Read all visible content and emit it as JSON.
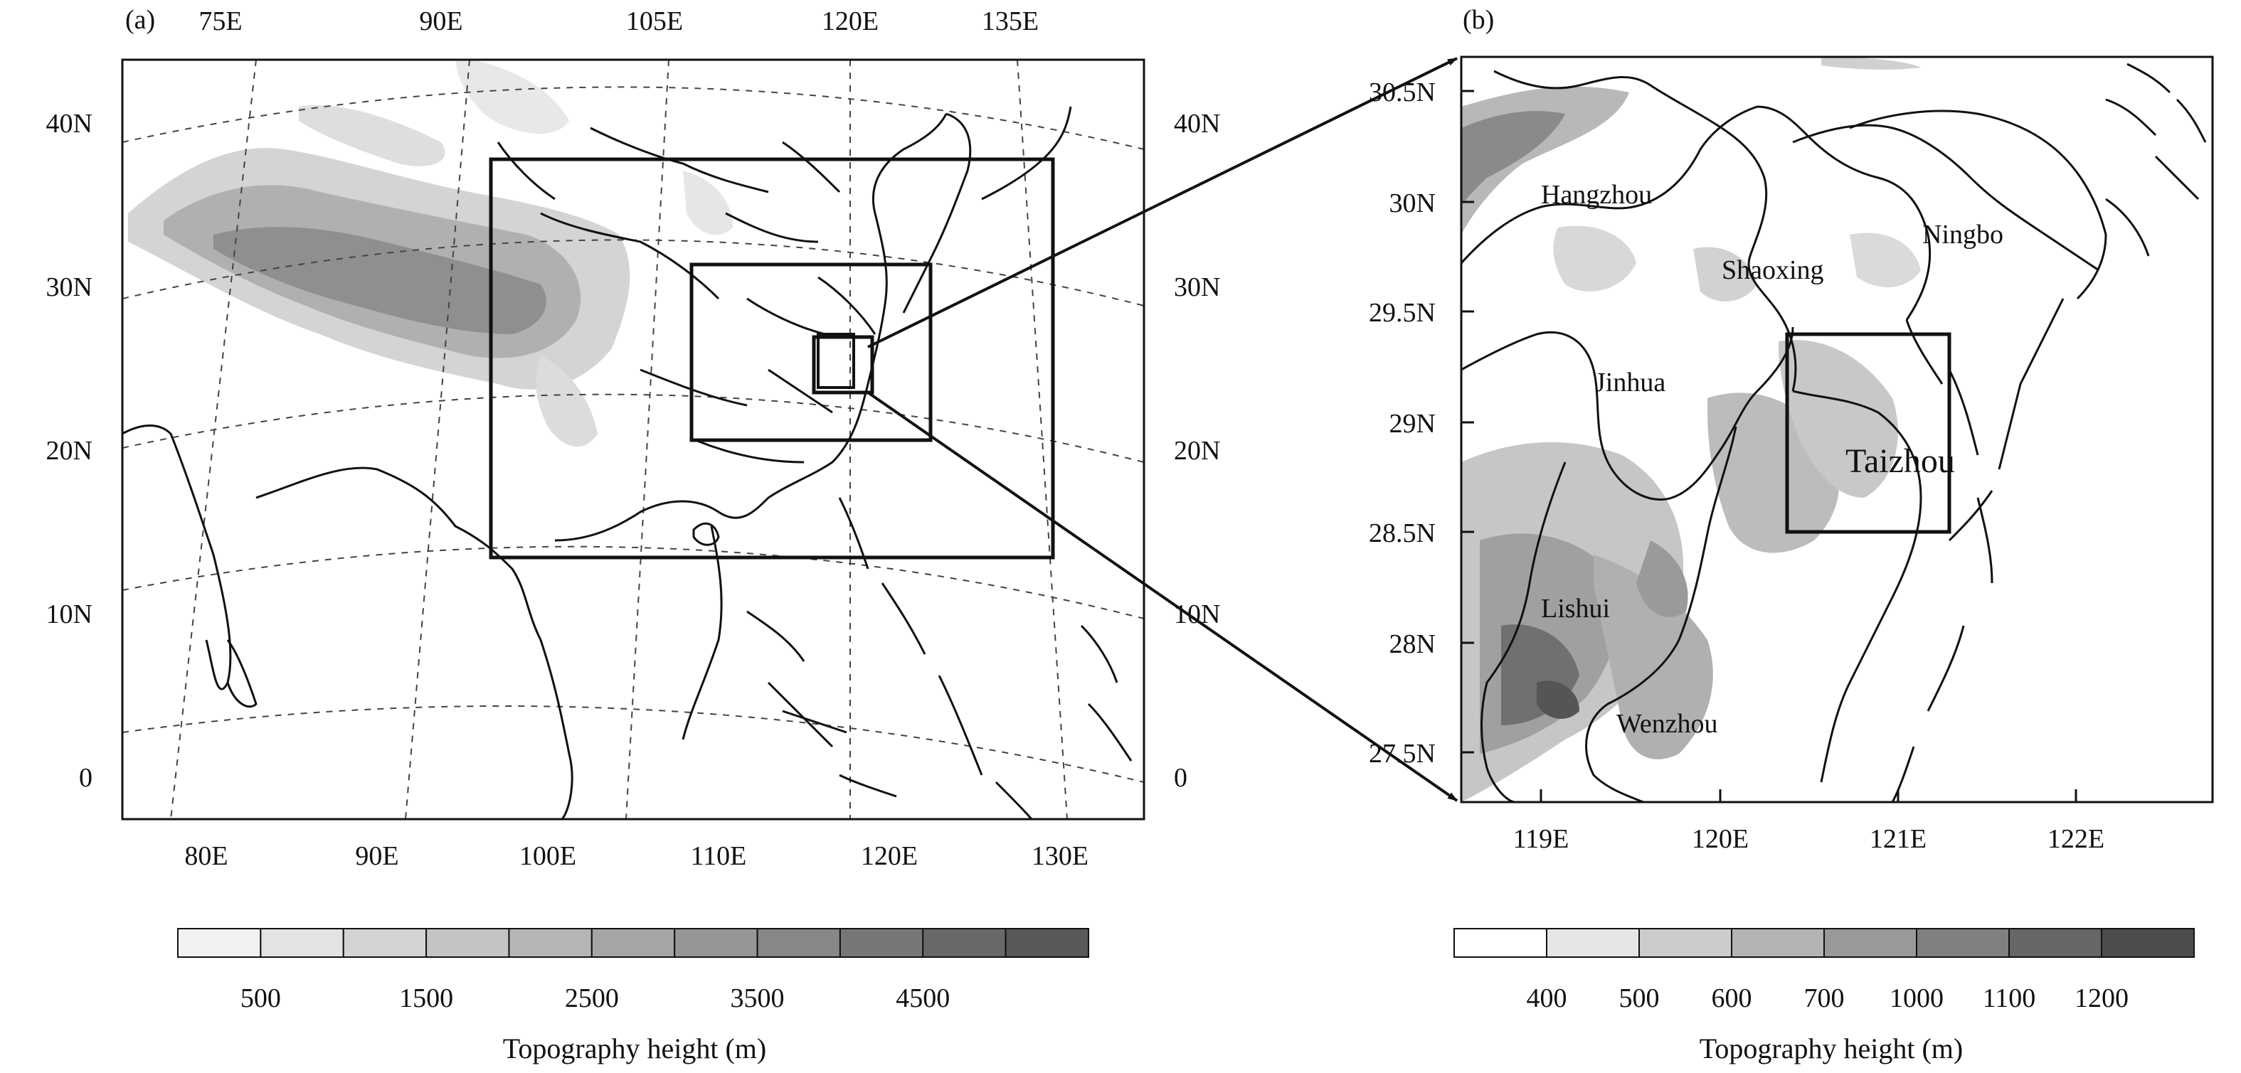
{
  "panel_a": {
    "label": "(a)",
    "top_lon_labels": [
      "75E",
      "90E",
      "105E",
      "120E",
      "135E"
    ],
    "bottom_lon_labels": [
      "80E",
      "90E",
      "100E",
      "110E",
      "120E",
      "130E"
    ],
    "left_lat_labels": [
      "40N",
      "30N",
      "20N",
      "10N",
      "0"
    ],
    "right_lat_labels": [
      "40N",
      "30N",
      "20N",
      "10N",
      "0"
    ],
    "colorbar": {
      "tick_labels": [
        "500",
        "1500",
        "2500",
        "3500",
        "4500"
      ],
      "title": "Topography height (m)",
      "colors": [
        "#f2f2f2",
        "#e3e3e3",
        "#d3d3d3",
        "#c4c4c4",
        "#b5b5b5",
        "#a5a5a5",
        "#969696",
        "#878787",
        "#777777",
        "#686868",
        "#595959"
      ]
    }
  },
  "panel_b": {
    "label": "(b)",
    "lat_labels": [
      "30.5N",
      "30N",
      "29.5N",
      "29N",
      "28.5N",
      "28N",
      "27.5N"
    ],
    "lon_labels": [
      "119E",
      "120E",
      "121E",
      "122E"
    ],
    "cities": [
      "Hangzhou",
      "Shaoxing",
      "Ningbo",
      "Jinhua",
      "Taizhou",
      "Lishui",
      "Wenzhou"
    ],
    "colorbar": {
      "tick_labels": [
        "400",
        "500",
        "600",
        "700",
        "1000",
        "1100",
        "1200"
      ],
      "title": "Topography height (m)",
      "colors": [
        "#ffffff",
        "#e6e6e6",
        "#cccccc",
        "#b3b3b3",
        "#999999",
        "#808080",
        "#666666",
        "#4d4d4d"
      ]
    }
  }
}
